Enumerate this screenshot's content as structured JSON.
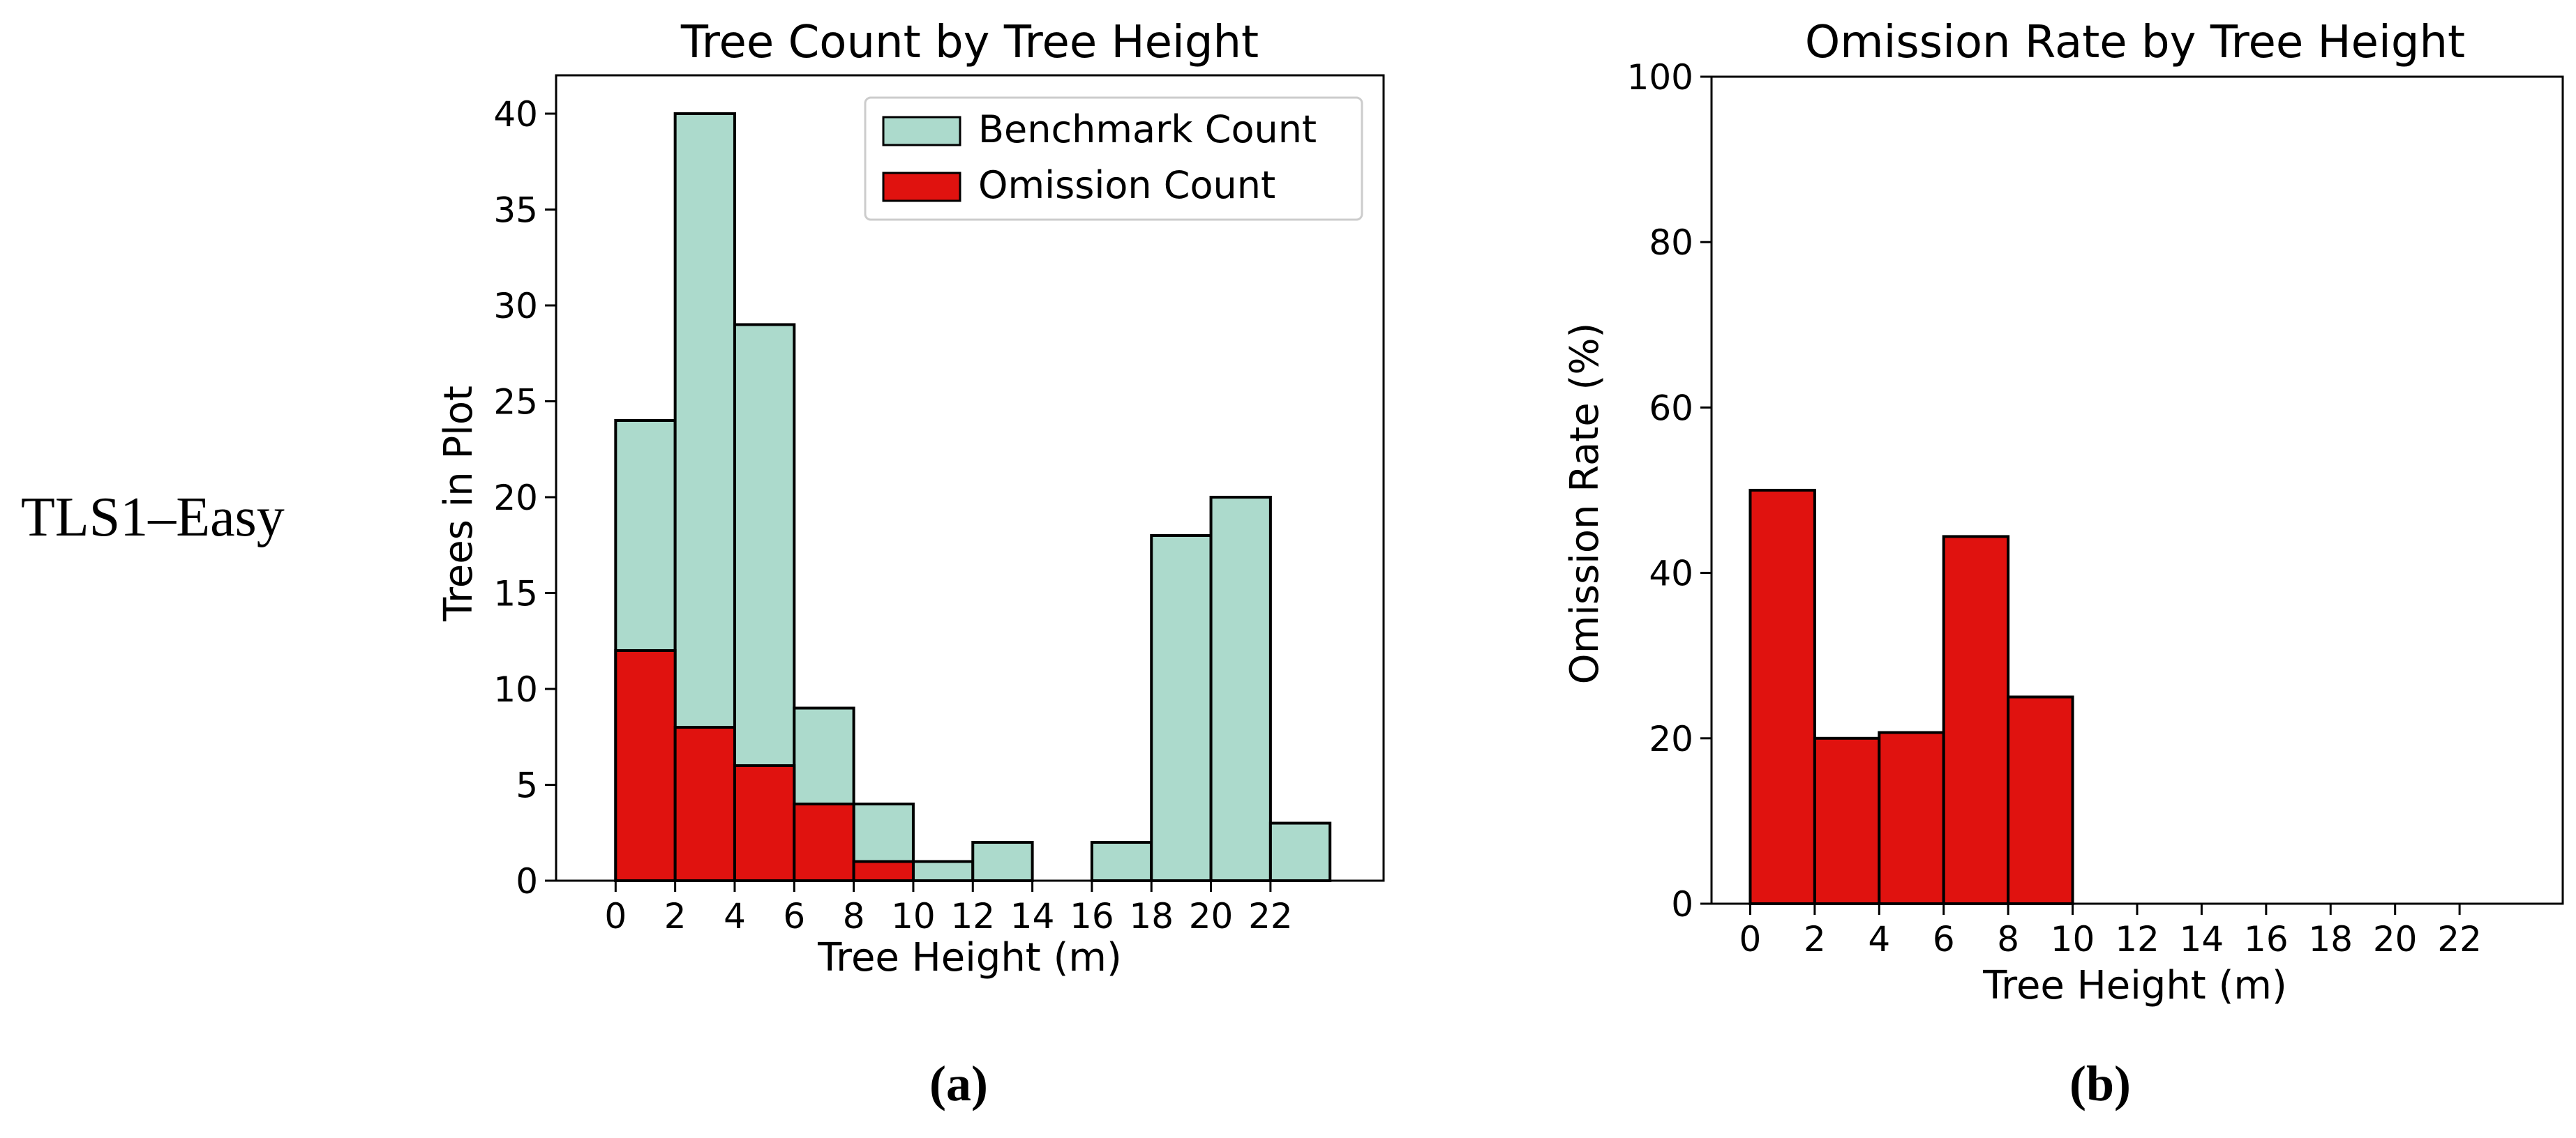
{
  "row_label": "TLS1–Easy",
  "panel_labels": [
    "(a)",
    "(b)"
  ],
  "chart_data": [
    {
      "type": "bar",
      "title": "Tree Count by Tree Height",
      "xlabel": "Tree Height (m)",
      "ylabel": "Trees in Plot",
      "bin_edges": [
        0,
        2,
        4,
        6,
        8,
        10,
        12,
        14,
        16,
        18,
        20,
        22,
        24
      ],
      "x_ticks": [
        0,
        2,
        4,
        6,
        8,
        10,
        12,
        14,
        16,
        18,
        20,
        22
      ],
      "y_ticks": [
        0,
        5,
        10,
        15,
        20,
        25,
        30,
        35,
        40
      ],
      "xlim": [
        -2,
        25.8
      ],
      "ylim": [
        0,
        42
      ],
      "legend_position": "top-right",
      "series": [
        {
          "name": "Benchmark Count",
          "color": "#acdacc",
          "values": [
            24,
            40,
            29,
            9,
            4,
            1,
            2,
            0,
            2,
            18,
            20,
            3
          ]
        },
        {
          "name": "Omission Count",
          "color": "#e0120f",
          "values": [
            12,
            8,
            6,
            4,
            1,
            0,
            0,
            0,
            0,
            0,
            0,
            0
          ]
        }
      ]
    },
    {
      "type": "bar",
      "title": "Omission Rate by Tree Height",
      "xlabel": "Tree Height (m)",
      "ylabel": "Omission Rate (%)",
      "bin_edges": [
        0,
        2,
        4,
        6,
        8,
        10,
        12,
        14,
        16,
        18,
        20,
        22,
        24
      ],
      "x_ticks": [
        0,
        2,
        4,
        6,
        8,
        10,
        12,
        14,
        16,
        18,
        20,
        22
      ],
      "y_ticks": [
        0,
        20,
        40,
        60,
        80,
        100
      ],
      "xlim": [
        -1.2,
        25.2
      ],
      "ylim": [
        0,
        100
      ],
      "series": [
        {
          "color": "#e0120f",
          "values": [
            50,
            20,
            20.7,
            44.4,
            25,
            0,
            0,
            0,
            0,
            0,
            0,
            0
          ]
        }
      ]
    }
  ]
}
